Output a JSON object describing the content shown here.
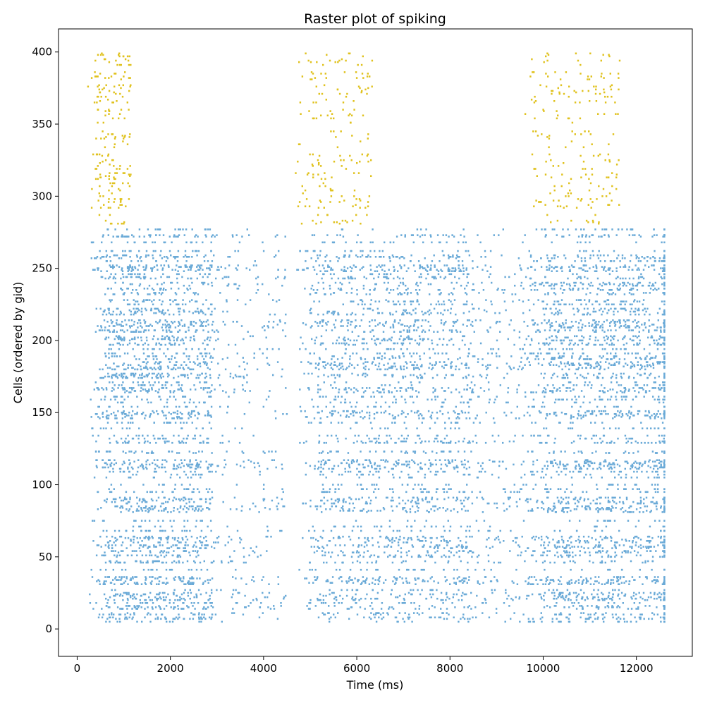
{
  "chart_data": {
    "type": "scatter",
    "title": "Raster plot of spiking",
    "xlabel": "Time (ms)",
    "ylabel": "Cells (ordered by gid)",
    "xlim": [
      -400,
      13200
    ],
    "ylim": [
      -19,
      416
    ],
    "x_ticks": [
      0,
      2000,
      4000,
      6000,
      8000,
      10000,
      12000
    ],
    "y_ticks": [
      0,
      50,
      100,
      150,
      200,
      250,
      300,
      350,
      400
    ],
    "grid": false,
    "legend": "none",
    "colors": {
      "excitatory": "#6aaad7",
      "inhibitory": "#e0c21f"
    },
    "series": [
      {
        "color_key": "excitatory",
        "gid_range": [
          0,
          279
        ],
        "bursts": [
          {
            "x_range": [
              200,
              4500
            ],
            "dense_until": 2900
          },
          {
            "x_range": [
              4700,
              9800
            ],
            "dense_until": 8500
          },
          {
            "x_range": [
              9600,
              12600
            ],
            "dense_until": 12600
          }
        ]
      },
      {
        "color_key": "inhibitory",
        "gid_range": [
          280,
          399
        ],
        "bursts": [
          {
            "x_range": [
              200,
              1150
            ]
          },
          {
            "x_range": [
              4650,
              6350
            ]
          },
          {
            "x_range": [
              9550,
              11650
            ]
          }
        ]
      }
    ]
  }
}
